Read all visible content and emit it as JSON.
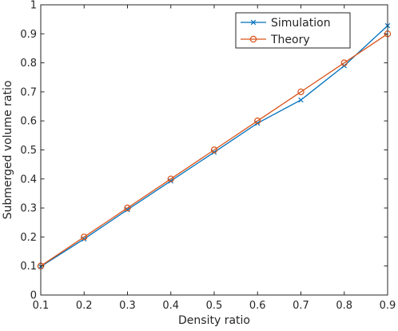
{
  "chart_data": {
    "type": "line",
    "xlabel": "Density ratio",
    "ylabel": "Submerged volume ratio",
    "xlim": [
      0.1,
      0.9
    ],
    "ylim": [
      0,
      1
    ],
    "x_ticks": [
      "0.1",
      "0.2",
      "0.3",
      "0.4",
      "0.5",
      "0.6",
      "0.7",
      "0.8",
      "0.9"
    ],
    "y_ticks": [
      "0",
      "0.1",
      "0.2",
      "0.3",
      "0.4",
      "0.5",
      "0.6",
      "0.7",
      "0.8",
      "0.9",
      "1"
    ],
    "grid": false,
    "legend_position": "top-right",
    "x": [
      0.1,
      0.2,
      0.3,
      0.4,
      0.5,
      0.6,
      0.7,
      0.8,
      0.9
    ],
    "series": [
      {
        "name": "Simulation",
        "marker": "x",
        "color": "#0072BD",
        "values": [
          0.098,
          0.193,
          0.294,
          0.393,
          0.492,
          0.592,
          0.672,
          0.79,
          0.928
        ]
      },
      {
        "name": "Theory",
        "marker": "o",
        "color": "#D95319",
        "values": [
          0.1,
          0.2,
          0.3,
          0.4,
          0.5,
          0.6,
          0.7,
          0.8,
          0.9
        ]
      }
    ]
  }
}
